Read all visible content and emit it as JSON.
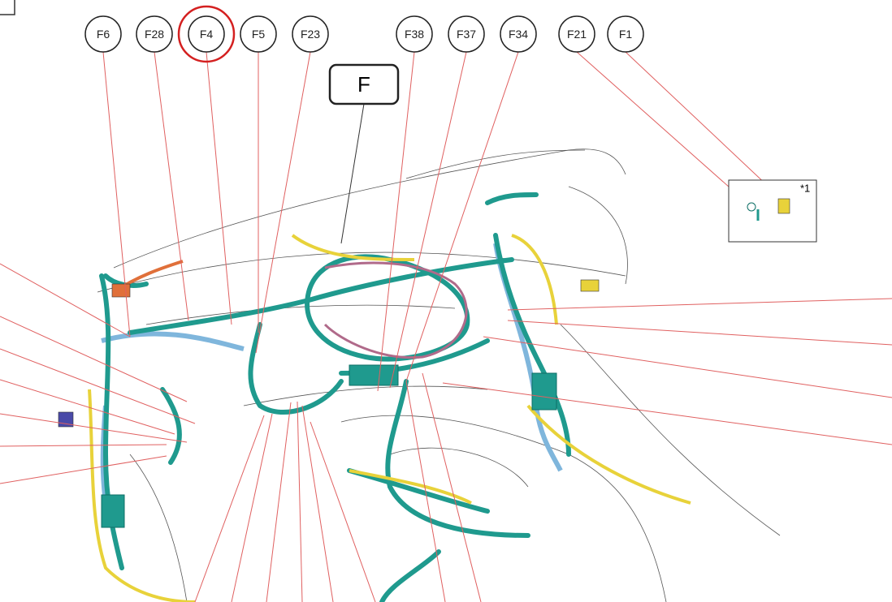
{
  "callouts": [
    {
      "label": "F6"
    },
    {
      "label": "F28"
    },
    {
      "label": "F4"
    },
    {
      "label": "F5"
    },
    {
      "label": "F23"
    },
    {
      "label": "F38"
    },
    {
      "label": "F37"
    },
    {
      "label": "F34"
    },
    {
      "label": "F21"
    },
    {
      "label": "F1"
    }
  ],
  "view_label": "F",
  "inset_note": "*1"
}
